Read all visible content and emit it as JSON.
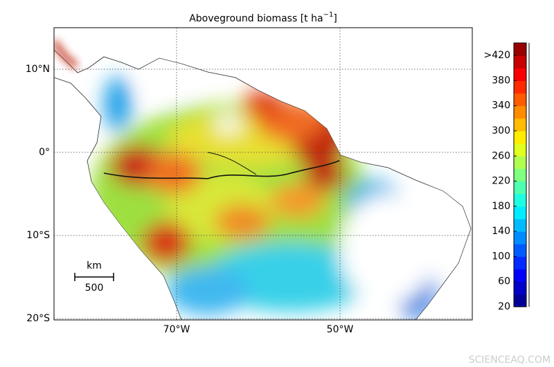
{
  "map": {
    "title": {
      "text": "Aboveground biomass [t ha",
      "superscript": "−1",
      "close": "]"
    },
    "latitudes": [
      {
        "value": 10,
        "label": "10°N"
      },
      {
        "value": 0,
        "label": "0°"
      },
      {
        "value": -10,
        "label": "10°S"
      },
      {
        "value": -20,
        "label": "20°S"
      }
    ],
    "longitudes": [
      {
        "value": -70,
        "label": "70°W"
      },
      {
        "value": -50,
        "label": "50°W"
      }
    ],
    "scale_bar": {
      "unit": "km",
      "length": "500"
    },
    "colorbar": {
      "range": [
        20,
        440
      ],
      "ticks": [
        20,
        60,
        100,
        140,
        180,
        220,
        260,
        300,
        340,
        380,
        {
          "value": 420,
          "label": ">420"
        }
      ]
    },
    "watermark": "SCIENCEAQ.COM"
  }
}
